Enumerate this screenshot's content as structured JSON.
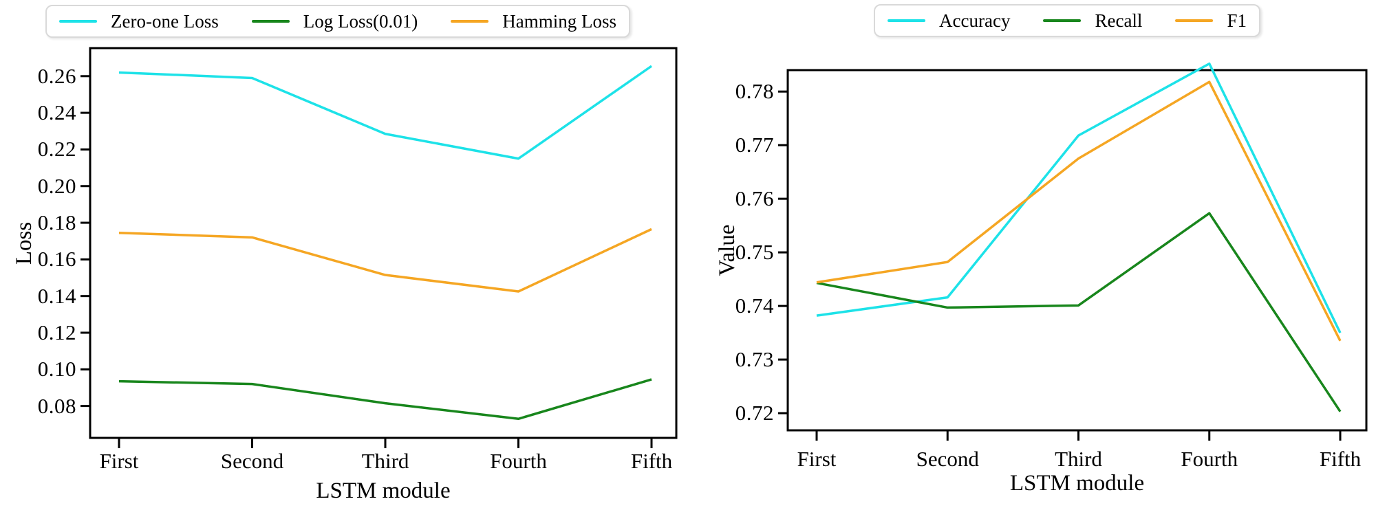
{
  "figure": {
    "background": "#ffffff",
    "frame_color": "#000000"
  },
  "chart_data": [
    {
      "type": "line",
      "title": "",
      "xlabel": "LSTM module",
      "ylabel": "Loss",
      "categories": [
        "First",
        "Second",
        "Third",
        "Fourth",
        "Fifth"
      ],
      "ytick_values": [
        0.08,
        0.1,
        0.12,
        0.14,
        0.16,
        0.18,
        0.2,
        0.22,
        0.24,
        0.26
      ],
      "ytick_labels": [
        "0.08",
        "0.10",
        "0.12",
        "0.14",
        "0.16",
        "0.18",
        "0.20",
        "0.22",
        "0.24",
        "0.26"
      ],
      "ylim": [
        0.0626,
        0.2753
      ],
      "grid": false,
      "legend_position": "top-center",
      "series": [
        {
          "name": "Zero-one Loss",
          "color": "#1de2e8",
          "values": [
            0.262,
            0.259,
            0.2285,
            0.215,
            0.2655
          ]
        },
        {
          "name": "Log Loss(0.01)",
          "color": "#18861c",
          "values": [
            0.0935,
            0.092,
            0.0815,
            0.073,
            0.0945
          ]
        },
        {
          "name": "Hamming Loss",
          "color": "#f5a623",
          "values": [
            0.1745,
            0.172,
            0.1515,
            0.1425,
            0.1765
          ]
        }
      ]
    },
    {
      "type": "line",
      "title": "",
      "xlabel": "LSTM module",
      "ylabel": "Value",
      "categories": [
        "First",
        "Second",
        "Third",
        "Fourth",
        "Fifth"
      ],
      "ytick_values": [
        0.72,
        0.73,
        0.74,
        0.75,
        0.76,
        0.77,
        0.78
      ],
      "ytick_labels": [
        "0.72",
        "0.73",
        "0.74",
        "0.75",
        "0.76",
        "0.77",
        "0.78"
      ],
      "ylim": [
        0.7168,
        0.784
      ],
      "grid": false,
      "legend_position": "top-center",
      "series": [
        {
          "name": "Accuracy",
          "color": "#1de2e8",
          "values": [
            0.7382,
            0.7416,
            0.7718,
            0.7852,
            0.735
          ]
        },
        {
          "name": "Recall",
          "color": "#18861c",
          "values": [
            0.7443,
            0.7397,
            0.7401,
            0.7573,
            0.7203
          ]
        },
        {
          "name": "F1",
          "color": "#f5a623",
          "values": [
            0.7444,
            0.7482,
            0.7675,
            0.7818,
            0.7335
          ]
        }
      ]
    }
  ]
}
